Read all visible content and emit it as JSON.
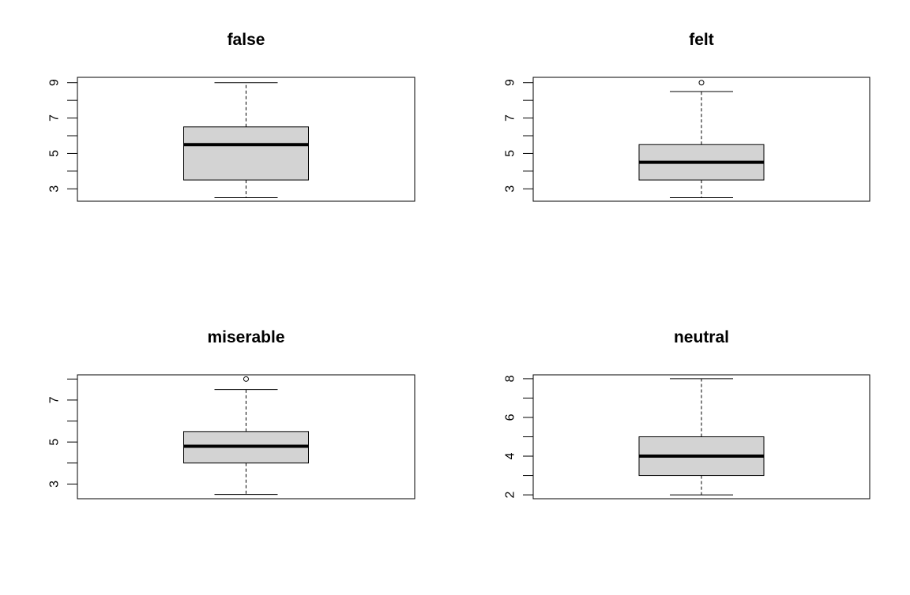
{
  "chart_data": [
    {
      "type": "box",
      "title": "false",
      "ylim": [
        2.3,
        9.3
      ],
      "yticks": [
        3,
        4,
        5,
        6,
        7,
        8,
        9
      ],
      "ytick_labels": [
        "3",
        "",
        "5",
        "",
        "7",
        "",
        "9"
      ],
      "box": {
        "whisker_low": 2.5,
        "q1": 3.5,
        "median": 5.5,
        "q3": 6.5,
        "whisker_high": 9.0
      },
      "outliers": [],
      "fill_color": "#d3d3d3"
    },
    {
      "type": "box",
      "title": "felt",
      "ylim": [
        2.3,
        9.3
      ],
      "yticks": [
        3,
        4,
        5,
        6,
        7,
        8,
        9
      ],
      "ytick_labels": [
        "3",
        "",
        "5",
        "",
        "7",
        "",
        "9"
      ],
      "box": {
        "whisker_low": 2.5,
        "q1": 3.5,
        "median": 4.5,
        "q3": 5.5,
        "whisker_high": 8.5
      },
      "outliers": [
        9.0
      ],
      "fill_color": "#d3d3d3"
    },
    {
      "type": "box",
      "title": "miserable",
      "ylim": [
        2.3,
        8.2
      ],
      "yticks": [
        3,
        4,
        5,
        6,
        7,
        8
      ],
      "ytick_labels": [
        "3",
        "",
        "5",
        "",
        "7",
        ""
      ],
      "box": {
        "whisker_low": 2.5,
        "q1": 4.0,
        "median": 4.8,
        "q3": 5.5,
        "whisker_high": 7.5
      },
      "outliers": [
        8.0
      ],
      "fill_color": "#d3d3d3"
    },
    {
      "type": "box",
      "title": "neutral",
      "ylim": [
        1.8,
        8.2
      ],
      "yticks": [
        2,
        3,
        4,
        5,
        6,
        7,
        8
      ],
      "ytick_labels": [
        "2",
        "",
        "4",
        "",
        "6",
        "",
        "8"
      ],
      "box": {
        "whisker_low": 2.0,
        "q1": 3.0,
        "median": 4.0,
        "q3": 5.0,
        "whisker_high": 8.0
      },
      "outliers": [],
      "fill_color": "#d3d3d3"
    }
  ]
}
